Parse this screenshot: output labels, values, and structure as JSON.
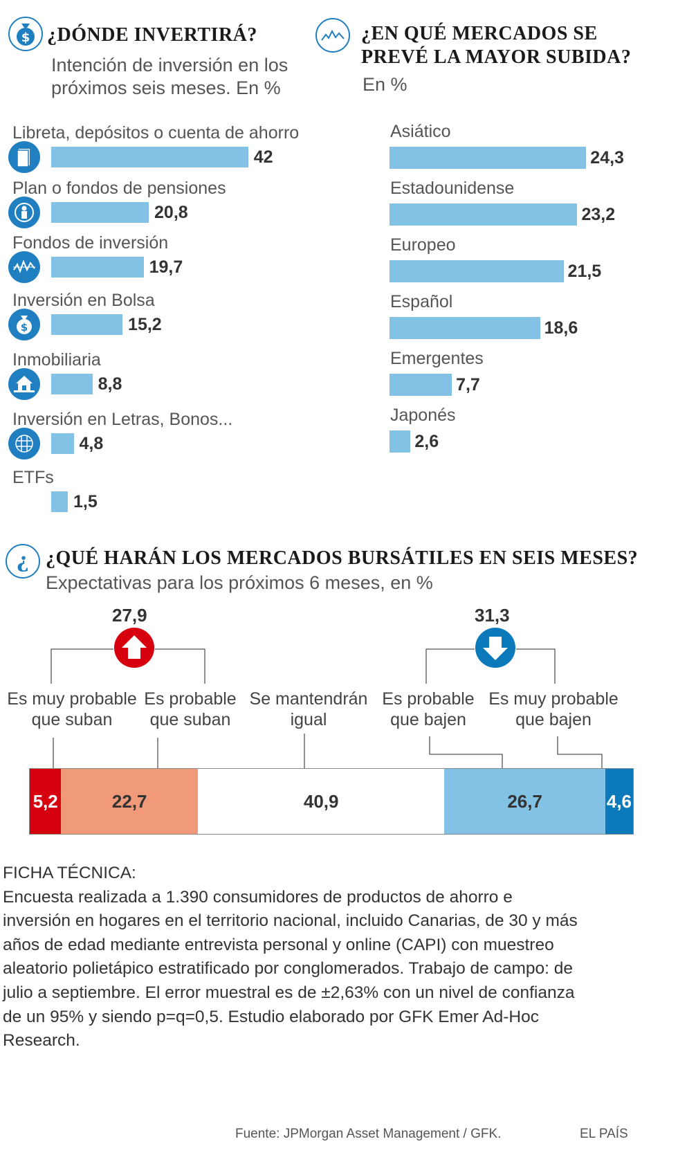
{
  "inversion": {
    "title": "¿DÓNDE INVERTIRÁ?",
    "subtitle_1": "Intención de inversión en los",
    "subtitle_2": "próximos seis meses. En %"
  },
  "mercados": {
    "title_1": "¿EN QUÉ MERCADOS SE",
    "title_2": "PREVÉ LA MAYOR SUBIDA?",
    "subtitle": "En %"
  },
  "bursatiles": {
    "title": "¿QUÉ HARÁN LOS MERCADOS BURSÁTILES EN SEIS MESES?",
    "subtitle": "Expectativas para los próximos 6 meses, en %",
    "up_total": "27,9",
    "down_total": "31,3",
    "labels": [
      {
        "line1": "Es muy probable",
        "line2": "que suban"
      },
      {
        "line1": "Es probable",
        "line2": "que suban"
      },
      {
        "line1": "Se mantendrán",
        "line2": "igual"
      },
      {
        "line1": "Es probable",
        "line2": "que bajen"
      },
      {
        "line1": "Es muy probable",
        "line2": "que bajen"
      }
    ]
  },
  "chart_data": [
    {
      "type": "bar",
      "title": "¿DÓNDE INVERTIRÁ?",
      "orientation": "horizontal",
      "categories": [
        "Libreta, depósitos o cuenta de ahorro",
        "Plan o fondos de pensiones",
        "Fondos de inversión",
        "Inversión en Bolsa",
        "Inmobiliaria",
        "Inversión en Letras, Bonos...",
        "ETFs"
      ],
      "values": [
        42,
        20.8,
        19.7,
        15.2,
        8.8,
        4.8,
        1.5
      ],
      "labels": [
        "42",
        "20,8",
        "19,7",
        "15,2",
        "8,8",
        "4,8",
        "1,5"
      ],
      "icons": [
        "passbook-icon",
        "pensioner-icon",
        "fund-chart-icon",
        "money-bag-icon",
        "house-icon",
        "globe-icon",
        ""
      ],
      "color": "#83c2e4"
    },
    {
      "type": "bar",
      "title": "¿EN QUÉ MERCADOS SE PREVÉ LA MAYOR SUBIDA?",
      "orientation": "horizontal",
      "categories": [
        "Asiático",
        "Estadounidense",
        "Europeo",
        "Español",
        "Emergentes",
        "Japonés"
      ],
      "values": [
        24.3,
        23.2,
        21.5,
        18.6,
        7.7,
        2.6
      ],
      "labels": [
        "24,3",
        "23,2",
        "21,5",
        "18,6",
        "7,7",
        "2,6"
      ],
      "color": "#83c2e4"
    },
    {
      "type": "bar",
      "stacked": true,
      "title": "¿QUÉ HARÁN LOS MERCADOS BURSÁTILES EN SEIS MESES?",
      "categories": [
        "Es muy probable que suban",
        "Es probable que suban",
        "Se mantendrán igual",
        "Es probable que bajen",
        "Es muy probable que bajen"
      ],
      "values": [
        5.2,
        22.7,
        40.9,
        26.7,
        4.6
      ],
      "labels": [
        "5,2",
        "22,7",
        "40,9",
        "26,7",
        "4,6"
      ],
      "colors": [
        "#d7000f",
        "#f09a7a",
        "#ffffff",
        "#83c2e4",
        "#0b79ba"
      ],
      "text_colors": [
        "#ffffff",
        "#333333",
        "#333333",
        "#333333",
        "#ffffff"
      ]
    }
  ],
  "ficha": {
    "heading": "FICHA TÉCNICA:",
    "lines": [
      "Encuesta realizada a 1.390 consumidores de productos de ahorro e",
      "inversión en hogares en el territorio nacional, incluido Canarias, de 30 y más",
      "años de edad mediante entrevista personal y online (CAPI) con muestreo",
      "aleatorio polietápico estratificado por conglomerados. Trabajo de campo: de",
      "julio a septiembre. El error muestral es de ±2,63% con un nivel de confianza",
      "de un 95% y siendo p=q=0,5.  Estudio elaborado por GFK Emer Ad-Hoc",
      "Research."
    ]
  },
  "footer": {
    "source": "Fuente: JPMorgan Asset Management / GFK.",
    "brand": "EL PAÍS"
  }
}
